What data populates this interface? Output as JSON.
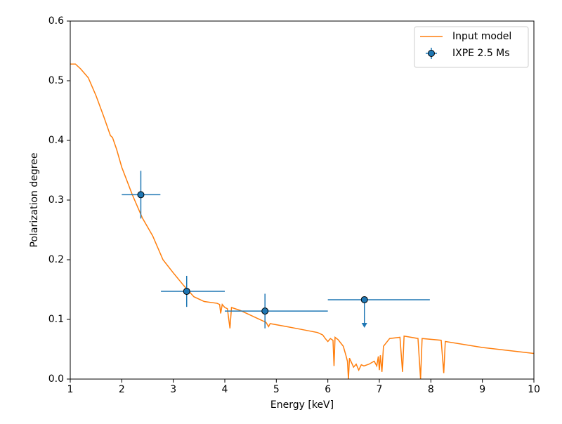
{
  "chart_data": {
    "type": "line-errorbar",
    "x_label": "Energy [keV]",
    "y_label": "Polarization degree",
    "xlim": [
      1,
      10
    ],
    "ylim": [
      0,
      0.6
    ],
    "xticks": [
      1,
      2,
      3,
      4,
      5,
      6,
      7,
      8,
      9,
      10
    ],
    "yticks": [
      {
        "value": 0,
        "label": "0.0"
      },
      0.1,
      0.2,
      0.3,
      0.4,
      0.5,
      0.6
    ],
    "legend": "upper right",
    "series": [
      {
        "name": "Input model",
        "type": "line",
        "color": "#ff7f0e",
        "x": [
          1,
          1.1,
          1.2,
          1.35,
          1.5,
          1.65,
          1.78,
          1.82,
          1.9,
          2.0,
          2.2,
          2.4,
          2.5,
          2.6,
          2.8,
          3.0,
          3.2,
          3.4,
          3.6,
          3.85,
          3.9,
          3.92,
          3.95,
          4.0,
          4.05,
          4.1,
          4.13,
          4.3,
          4.6,
          4.8,
          4.85,
          4.88,
          5.2,
          5.5,
          5.8,
          5.9,
          5.95,
          6.0,
          6.05,
          6.1,
          6.12,
          6.14,
          6.2,
          6.3,
          6.35,
          6.38,
          6.4,
          6.42,
          6.5,
          6.55,
          6.6,
          6.65,
          6.7,
          6.8,
          6.9,
          6.95,
          6.98,
          7.0,
          7.02,
          7.05,
          7.08,
          7.2,
          7.4,
          7.45,
          7.48,
          7.75,
          7.8,
          7.83,
          8.2,
          8.25,
          8.28,
          9,
          10
        ],
        "values": [
          0.528,
          0.528,
          0.52,
          0.505,
          0.475,
          0.44,
          0.408,
          0.405,
          0.385,
          0.355,
          0.31,
          0.27,
          0.255,
          0.24,
          0.2,
          0.178,
          0.157,
          0.138,
          0.13,
          0.127,
          0.125,
          0.11,
          0.125,
          0.12,
          0.118,
          0.085,
          0.12,
          0.115,
          0.103,
          0.095,
          0.088,
          0.093,
          0.088,
          0.083,
          0.078,
          0.074,
          0.068,
          0.063,
          0.068,
          0.065,
          0.022,
          0.07,
          0.066,
          0.055,
          0.04,
          0.03,
          0.0,
          0.035,
          0.02,
          0.025,
          0.015,
          0.024,
          0.022,
          0.025,
          0.03,
          0.022,
          0.038,
          0.015,
          0.04,
          0.012,
          0.055,
          0.068,
          0.07,
          0.012,
          0.072,
          0.068,
          0.0,
          0.068,
          0.065,
          0.01,
          0.063,
          0.053,
          0.043
        ]
      },
      {
        "name": "IXPE 2.5 Ms",
        "type": "errorbar",
        "color": "#1f77b4",
        "x": [
          2.37,
          3.26,
          4.78,
          6.71
        ],
        "x_lower": [
          2.0,
          2.76,
          4.0,
          6.0
        ],
        "x_upper": [
          2.75,
          4.0,
          6.0,
          7.98
        ],
        "values": [
          0.309,
          0.147,
          0.114,
          0.133
        ],
        "yerr": [
          0.04,
          0.026,
          0.029,
          null
        ],
        "upper_limit": [
          false,
          false,
          false,
          true
        ]
      }
    ]
  }
}
